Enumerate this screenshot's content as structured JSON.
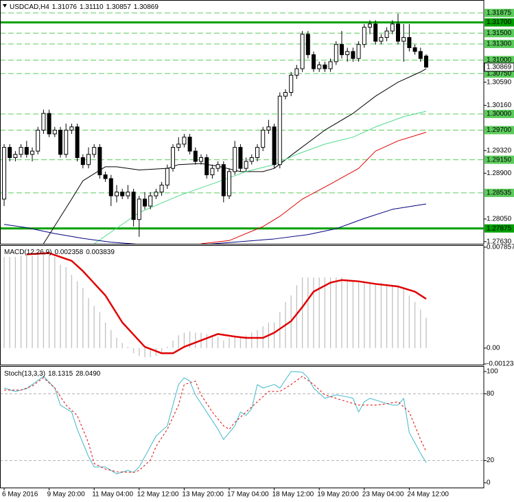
{
  "chart_data": [
    {
      "type": "candlestick",
      "title": "USDCAD,H4",
      "header": [
        "1.31076",
        "1.31110",
        "1.30857",
        "1.30869"
      ],
      "categories": [
        "6 May 2016",
        null,
        null,
        null,
        null,
        null,
        null,
        null,
        "9 May 20:00",
        null,
        null,
        null,
        null,
        null,
        null,
        null,
        "11 May 04:00",
        null,
        null,
        null,
        null,
        null,
        null,
        null,
        "12 May 12:00",
        null,
        null,
        null,
        null,
        null,
        null,
        null,
        "13 May 20:00",
        null,
        null,
        null,
        null,
        null,
        null,
        null,
        "17 May 04:00",
        null,
        null,
        null,
        null,
        null,
        null,
        null,
        "18 May 12:00",
        null,
        null,
        null,
        null,
        null,
        null,
        null,
        "19 May 20:00",
        null,
        null,
        null,
        null,
        null,
        null,
        null,
        "23 May 04:00",
        null,
        null,
        null,
        null,
        null,
        null,
        null,
        "24 May 12:00",
        null,
        null,
        null
      ],
      "open": [
        1.2842,
        1.2938,
        1.2919,
        1.2925,
        1.2938,
        1.2925,
        1.2931,
        1.297,
        1.3001,
        1.2963,
        1.297,
        1.2925,
        1.297,
        1.2976,
        1.2919,
        1.2906,
        1.2925,
        1.2938,
        1.2887,
        1.288,
        1.2848,
        1.2855,
        1.2848,
        1.2855,
        1.2804,
        1.2842,
        1.2829,
        1.2848,
        1.2855,
        1.2868,
        1.2899,
        1.2938,
        1.2944,
        1.2957,
        1.2931,
        1.2912,
        1.2919,
        1.2887,
        1.2899,
        1.2906,
        1.2848,
        1.2893,
        1.2938,
        1.2899,
        1.2912,
        1.2919,
        1.2938,
        1.297,
        1.2976,
        1.2906,
        1.3033,
        1.304,
        1.3072,
        1.3084,
        1.3148,
        1.311,
        1.3084,
        1.3091,
        1.3084,
        1.3097,
        1.3129,
        1.311,
        1.3116,
        1.3103,
        1.3129,
        1.3161,
        1.3167,
        1.3135,
        1.3142,
        1.3154,
        1.3167,
        1.3135,
        1.3142,
        1.3123,
        1.3116,
        1.31076
      ],
      "high": [
        1.2944,
        1.2944,
        1.2931,
        1.2944,
        1.295,
        1.2938,
        1.2976,
        1.3008,
        1.3008,
        1.2976,
        1.2976,
        1.2982,
        1.2982,
        1.2982,
        1.2925,
        1.2938,
        1.2944,
        1.2944,
        1.2893,
        1.2887,
        1.2868,
        1.2861,
        1.2868,
        1.2861,
        1.2848,
        1.2855,
        1.2855,
        1.2861,
        1.2874,
        1.2906,
        1.2944,
        1.2957,
        1.2963,
        1.2963,
        1.2938,
        1.2925,
        1.2925,
        1.2906,
        1.2912,
        1.2912,
        1.2899,
        1.295,
        1.2944,
        1.2919,
        1.2925,
        1.2944,
        1.2976,
        1.2989,
        1.2982,
        1.304,
        1.3046,
        1.3078,
        1.3091,
        1.3154,
        1.3154,
        1.3116,
        1.3097,
        1.3097,
        1.3103,
        1.3135,
        1.3154,
        1.3123,
        1.3123,
        1.3135,
        1.3167,
        1.3174,
        1.3174,
        1.3148,
        1.3161,
        1.3174,
        1.3186,
        1.3167,
        1.3167,
        1.3129,
        1.3123,
        1.3111
      ],
      "low": [
        1.2829,
        1.2912,
        1.2912,
        1.2919,
        1.2919,
        1.2912,
        1.2925,
        1.2963,
        1.2957,
        1.2957,
        1.2919,
        1.2919,
        1.2963,
        1.2912,
        1.2899,
        1.2899,
        1.2919,
        1.288,
        1.2874,
        1.2829,
        1.2836,
        1.2842,
        1.2842,
        1.2791,
        1.2772,
        1.2823,
        1.2823,
        1.2842,
        1.2848,
        1.2861,
        1.2893,
        1.2931,
        1.2938,
        1.2925,
        1.2906,
        1.2906,
        1.288,
        1.288,
        1.2893,
        1.2836,
        1.2842,
        1.2887,
        1.2893,
        1.2893,
        1.2906,
        1.2912,
        1.2931,
        1.2963,
        1.2899,
        1.2899,
        1.3027,
        1.3033,
        1.3065,
        1.3078,
        1.3103,
        1.3078,
        1.3078,
        1.3078,
        1.3078,
        1.3091,
        1.3103,
        1.3097,
        1.3097,
        1.3097,
        1.3123,
        1.3148,
        1.3129,
        1.3129,
        1.3135,
        1.3148,
        1.3129,
        1.3097,
        1.3116,
        1.311,
        1.3097,
        1.30857
      ],
      "close": [
        1.2938,
        1.2919,
        1.2925,
        1.2938,
        1.2925,
        1.2931,
        1.297,
        1.3001,
        1.2963,
        1.297,
        1.2925,
        1.297,
        1.2976,
        1.2919,
        1.2906,
        1.2925,
        1.2938,
        1.2887,
        1.288,
        1.2848,
        1.2855,
        1.2848,
        1.2855,
        1.2804,
        1.2842,
        1.2829,
        1.2848,
        1.2855,
        1.2868,
        1.2899,
        1.2938,
        1.2944,
        1.2957,
        1.2931,
        1.2912,
        1.2919,
        1.2887,
        1.2899,
        1.2906,
        1.2848,
        1.2893,
        1.2938,
        1.2899,
        1.2912,
        1.2919,
        1.2938,
        1.297,
        1.2976,
        1.2906,
        1.3033,
        1.304,
        1.3072,
        1.3084,
        1.3148,
        1.311,
        1.3084,
        1.3091,
        1.3084,
        1.3097,
        1.3129,
        1.311,
        1.3116,
        1.3103,
        1.3129,
        1.3161,
        1.3167,
        1.3135,
        1.3142,
        1.3154,
        1.3167,
        1.3135,
        1.3142,
        1.3123,
        1.3116,
        1.3103,
        1.30869
      ],
      "up_color": "#ffffff",
      "down_color": "#000000",
      "lines": [
        {
          "color": "#000000",
          "x": [
            7,
            12,
            14,
            18,
            20,
            24,
            29,
            31,
            35,
            38,
            42,
            46,
            48,
            52,
            57,
            62,
            66,
            70,
            74,
            75
          ],
          "values": [
            1.2759,
            1.2842,
            1.2876,
            1.2902,
            1.2902,
            1.2896,
            1.2899,
            1.2906,
            1.2908,
            1.2903,
            1.2893,
            1.2893,
            1.2899,
            1.2931,
            1.297,
            1.3001,
            1.3033,
            1.3059,
            1.3078,
            1.3084
          ]
        },
        {
          "color": "#4fd98a",
          "x": [
            16,
            24,
            31,
            38,
            43,
            48,
            52,
            57,
            62,
            66,
            71,
            75
          ],
          "values": [
            1.2759,
            1.2817,
            1.2848,
            1.2874,
            1.2893,
            1.2906,
            1.2925,
            1.2944,
            1.2957,
            1.2976,
            1.2995,
            1.3005
          ]
        },
        {
          "color": "#dd0000",
          "x": [
            35,
            40,
            46,
            49,
            53,
            58,
            63,
            66,
            70,
            75
          ],
          "values": [
            1.2759,
            1.2765,
            1.2791,
            1.281,
            1.2842,
            1.287,
            1.2899,
            1.2931,
            1.295,
            1.2966
          ]
        },
        {
          "color": "#000080",
          "x": [
            0,
            4,
            9,
            14,
            19,
            24,
            36,
            42,
            48,
            54,
            59,
            64,
            69,
            75
          ],
          "values": [
            1.2795,
            1.2789,
            1.2778,
            1.2769,
            1.2762,
            1.2758,
            1.2758,
            1.2763,
            1.2768,
            1.2776,
            1.2787,
            1.2806,
            1.2823,
            1.2833
          ]
        }
      ],
      "levels": [
        {
          "value": 1.31875,
          "label": "1.31875",
          "style": "dashed"
        },
        {
          "value": 1.317,
          "label": "1.31700",
          "style": "solid"
        },
        {
          "value": 1.315,
          "label": "1.31500",
          "style": "dashed"
        },
        {
          "value": 1.313,
          "label": "1.31300",
          "style": "dashed"
        },
        {
          "value": 1.31,
          "label": "1.31000",
          "style": "dashed"
        },
        {
          "value": 1.3075,
          "label": "1.30750",
          "style": "dashed"
        },
        {
          "value": 1.3,
          "label": "1.30000",
          "style": "dashed"
        },
        {
          "value": 1.297,
          "label": "1.29700",
          "style": "dashed"
        },
        {
          "value": 1.2915,
          "label": "1.29150",
          "style": "dashed"
        },
        {
          "value": 1.28535,
          "label": "1.28535",
          "style": "dashed"
        },
        {
          "value": 1.27875,
          "label": "1.27875",
          "style": "solid"
        }
      ],
      "level_color": "#00a000",
      "level_label_color": "#5ccc5c",
      "current": {
        "value": 1.30869,
        "label": "1.30869"
      },
      "ylim": [
        1.2759,
        1.3209
      ],
      "yticks": [
        {
          "value": 1.3059,
          "label": "1.30590"
        },
        {
          "value": 1.3016,
          "label": "1.30160"
        },
        {
          "value": 1.2932,
          "label": "1.29320"
        },
        {
          "value": 1.289,
          "label": "1.28900"
        },
        {
          "value": 1.2805,
          "label": "1.28050"
        },
        {
          "value": 1.2763,
          "label": "1.27630"
        }
      ]
    },
    {
      "type": "macd",
      "title": "MACD(12,26,9)",
      "header": [
        "0.002358",
        "0.003839"
      ],
      "bars": {
        "color": "#c0c0c0",
        "values": [
          0.0071,
          0.0071,
          0.0071,
          0.0072,
          0.0072,
          0.0072,
          0.0073,
          0.0074,
          0.0073,
          0.0071,
          0.0065,
          0.0063,
          0.0057,
          0.0052,
          0.0047,
          0.0039,
          0.0033,
          0.0028,
          0.002,
          0.0014,
          0.0008,
          0.0004,
          0.0001,
          -0.0004,
          -0.0006,
          -0.0007,
          -0.0007,
          -0.0006,
          -0.0004,
          0.0001,
          0.0006,
          0.001,
          0.0012,
          0.0013,
          0.0012,
          0.0012,
          0.0011,
          0.001,
          0.0009,
          0.0006,
          0.0008,
          0.001,
          0.0009,
          0.001,
          0.0012,
          0.0014,
          0.0017,
          0.002,
          0.002,
          0.0028,
          0.0036,
          0.0041,
          0.0049,
          0.0055,
          0.0055,
          0.0055,
          0.0055,
          0.0055,
          0.0055,
          0.0055,
          0.0055,
          0.0053,
          0.0052,
          0.0052,
          0.0052,
          0.0051,
          0.005,
          0.0051,
          0.005,
          0.0049,
          0.0048,
          0.0047,
          0.0041,
          0.0036,
          0.003,
          0.002358
        ]
      },
      "signal": {
        "color": "#e00000",
        "x": [
          4,
          8,
          12,
          14,
          18,
          21,
          25,
          28,
          30,
          32,
          35,
          38,
          41,
          43,
          46,
          48,
          51,
          53,
          55,
          58,
          60,
          63,
          66,
          70,
          73,
          75
        ],
        "values": [
          0.0073,
          0.0074,
          0.0068,
          0.006,
          0.0041,
          0.002,
          0.0001,
          -0.0004,
          -0.0004,
          0.0001,
          0.0006,
          0.0011,
          0.0009,
          0.0008,
          0.0008,
          0.0012,
          0.0021,
          0.0032,
          0.0044,
          0.0051,
          0.0053,
          0.0052,
          0.005,
          0.0048,
          0.0044,
          0.003839
        ]
      },
      "ylim": [
        -0.001234,
        0.007857
      ],
      "yticks": [
        0.007857,
        {
          "value": 0,
          "label": "0.00"
        },
        -0.001234
      ]
    },
    {
      "type": "stochastic",
      "title": "Stoch(13,3,3)",
      "header": [
        "18.1315",
        "28.0490"
      ],
      "series": [
        {
          "color": "#3fb8c8",
          "dashed": false,
          "x": [
            0,
            2,
            4,
            7,
            9,
            10,
            12,
            13,
            15,
            16,
            18,
            20,
            22,
            23,
            24,
            25,
            27,
            29,
            30,
            31,
            32,
            33,
            34,
            36,
            38,
            39,
            41,
            42,
            43,
            44,
            45,
            46,
            48,
            49,
            51,
            53,
            54,
            55,
            57,
            59,
            61,
            62,
            63,
            64,
            65,
            67,
            69,
            70,
            71,
            72,
            73,
            74,
            75
          ],
          "values": [
            85.2,
            82.1,
            84.6,
            95.7,
            85.2,
            69.8,
            63.6,
            48.1,
            23.5,
            14.2,
            14.2,
            8.0,
            11.1,
            9.3,
            14.2,
            23.5,
            42.0,
            51.2,
            69.8,
            88.3,
            94.4,
            91.4,
            79.0,
            63.6,
            48.1,
            38.9,
            51.2,
            63.6,
            60.5,
            66.7,
            88.3,
            85.2,
            88.3,
            85.2,
            100,
            99.4,
            94.4,
            85.2,
            75.9,
            79.0,
            77.2,
            75.9,
            63.6,
            72.8,
            75.9,
            72.8,
            69.8,
            69.8,
            75.9,
            45.1,
            35.8,
            26.5,
            18.1315
          ]
        },
        {
          "color": "#e00000",
          "dashed": true,
          "x": [
            0,
            3,
            5,
            7,
            9,
            11,
            13,
            15,
            16,
            18,
            20,
            23,
            24,
            26,
            27,
            29,
            31,
            32,
            34,
            35,
            37,
            39,
            40,
            41,
            43,
            45,
            47,
            49,
            51,
            53,
            55,
            57,
            59,
            61,
            63,
            66,
            68,
            70,
            72,
            74,
            75
          ],
          "values": [
            83.3,
            83.3,
            87.0,
            94.4,
            85.2,
            69.8,
            60.5,
            35.8,
            17.3,
            12.3,
            9.9,
            9.3,
            11.1,
            20.4,
            32.7,
            48.1,
            69.8,
            88.3,
            91.4,
            79.0,
            63.6,
            51.2,
            48.1,
            54.3,
            63.6,
            72.8,
            82.1,
            82.1,
            88.3,
            95.7,
            88.3,
            79.0,
            75.9,
            72.8,
            69.8,
            69.8,
            71.0,
            72.8,
            63.6,
            38.9,
            28.049
          ]
        }
      ],
      "ylim": [
        0,
        100
      ],
      "yticks": [
        100,
        80,
        20,
        0
      ]
    }
  ]
}
